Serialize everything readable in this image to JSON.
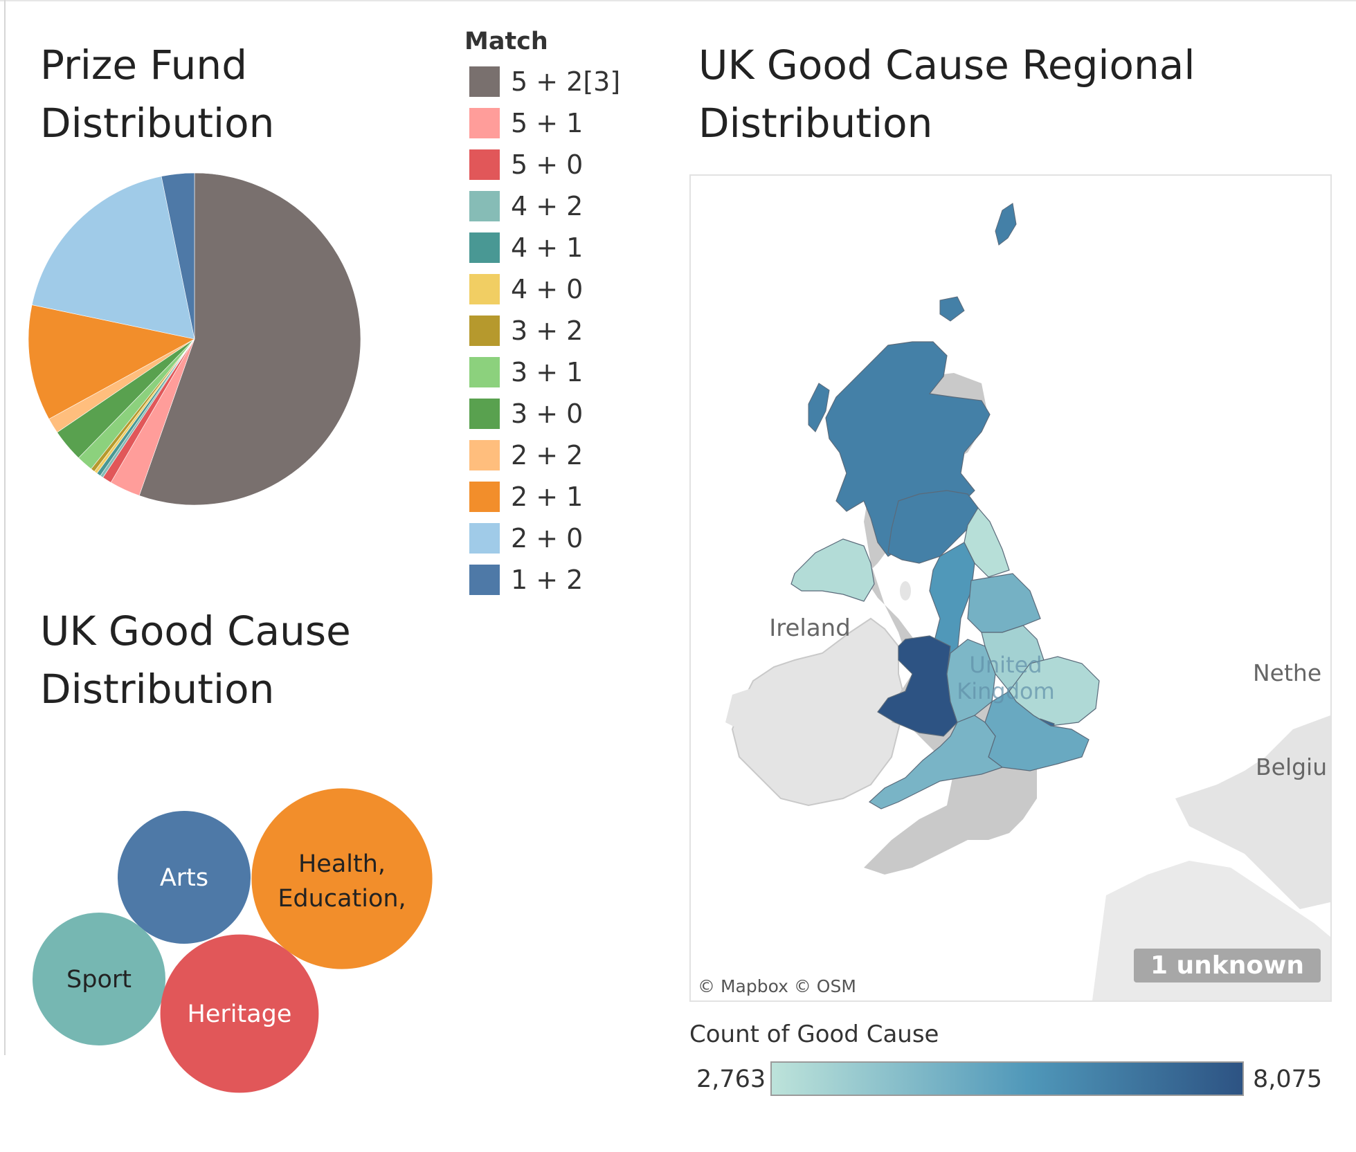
{
  "prize_fund": {
    "title_line1": "Prize Fund",
    "title_line2": "Distribution"
  },
  "legend": {
    "title": "Match",
    "items": [
      {
        "label": "5 + 2[3]",
        "color": "#79706e"
      },
      {
        "label": "5 + 1",
        "color": "#ff9d9a"
      },
      {
        "label": "5 + 0",
        "color": "#e15759"
      },
      {
        "label": "4 + 2",
        "color": "#86bcb6"
      },
      {
        "label": "4 + 1",
        "color": "#499894"
      },
      {
        "label": "4 + 0",
        "color": "#f1ce63"
      },
      {
        "label": "3 + 2",
        "color": "#b6992d"
      },
      {
        "label": "3 + 1",
        "color": "#8cd17d"
      },
      {
        "label": "3 + 0",
        "color": "#59a14f"
      },
      {
        "label": "2 + 2",
        "color": "#ffbe7d"
      },
      {
        "label": "2 + 1",
        "color": "#f28e2b"
      },
      {
        "label": "2 + 0",
        "color": "#a0cbe8"
      },
      {
        "label": "1 + 2",
        "color": "#4e79a7"
      }
    ]
  },
  "good_cause": {
    "title_line1": "UK Good Cause",
    "title_line2": "Distribution"
  },
  "regional": {
    "title_line1": "UK Good Cause Regional",
    "title_line2": "Distribution",
    "map_labels": {
      "ireland": "Ireland",
      "uk_line1": "United",
      "uk_line2": "Kingdom",
      "netherlands": "Nethe",
      "belgium": "Belgiu"
    },
    "attribution": "© Mapbox © OSM",
    "unknown": "1 unknown",
    "ramp": {
      "title": "Count of Good Cause",
      "min_label": "2,763",
      "max_label": "8,075",
      "color_low": "#bde3da",
      "color_high": "#2d5383"
    }
  },
  "chart_data": [
    {
      "type": "pie",
      "title": "Prize Fund Distribution",
      "legend_title": "Match",
      "categories": [
        "5 + 2[3]",
        "5 + 1",
        "5 + 0",
        "4 + 2",
        "4 + 1",
        "4 + 0",
        "3 + 2",
        "3 + 1",
        "3 + 0",
        "2 + 2",
        "2 + 1",
        "2 + 0",
        "1 + 2"
      ],
      "values": [
        55.4,
        3.0,
        0.9,
        0.3,
        0.4,
        0.3,
        0.4,
        1.6,
        3.2,
        1.5,
        11.3,
        18.5,
        3.2
      ],
      "unit": "% of prize fund (estimated)"
    },
    {
      "type": "bubble",
      "title": "UK Good Cause Distribution",
      "categories": [
        "Arts",
        "Health, Education,",
        "Sport",
        "Heritage"
      ],
      "values": [
        1.0,
        1.85,
        1.0,
        1.42
      ],
      "colors": [
        "#4e79a7",
        "#f28e2b",
        "#76b7b2",
        "#e15759"
      ],
      "unit": "relative size (estimated)"
    },
    {
      "type": "map",
      "title": "UK Good Cause Regional Distribution",
      "measure": "Count of Good Cause",
      "range": [
        2763,
        8075
      ],
      "regions": [
        {
          "name": "Scotland",
          "value": 6300
        },
        {
          "name": "Northern Ireland",
          "value": 3000
        },
        {
          "name": "North East",
          "value": 2900
        },
        {
          "name": "North West",
          "value": 5400
        },
        {
          "name": "Yorkshire and the Humber",
          "value": 4500
        },
        {
          "name": "Wales",
          "value": 8075
        },
        {
          "name": "West Midlands",
          "value": 4300
        },
        {
          "name": "East Midlands",
          "value": 3400
        },
        {
          "name": "East of England",
          "value": 3100
        },
        {
          "name": "London",
          "value": 7200
        },
        {
          "name": "South East",
          "value": 4800
        },
        {
          "name": "South West",
          "value": 4400
        }
      ]
    }
  ]
}
